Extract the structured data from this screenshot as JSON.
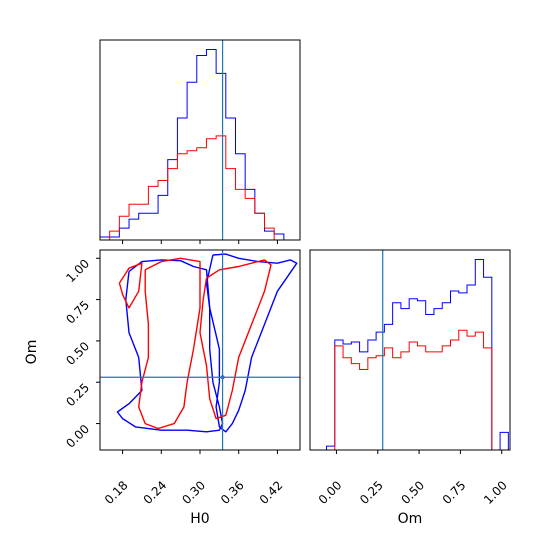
{
  "chart_data": [
    {
      "panel": "H0 marginal",
      "type": "histogram",
      "truth": {
        "H0": 0.335
      },
      "xlim": [
        0.145,
        0.455
      ],
      "bin_edges": [
        0.145,
        0.16,
        0.175,
        0.19,
        0.205,
        0.22,
        0.235,
        0.25,
        0.265,
        0.28,
        0.295,
        0.31,
        0.325,
        0.34,
        0.355,
        0.37,
        0.385,
        0.4,
        0.415,
        0.43,
        0.445
      ],
      "series": [
        {
          "color": "#0000ff",
          "values": [
            1,
            1,
            4,
            7,
            9,
            9,
            15,
            27,
            41,
            53,
            62,
            64,
            56,
            41,
            29,
            17,
            9,
            3,
            2,
            0
          ]
        },
        {
          "color": "#ff0000",
          "values": [
            0,
            3,
            8,
            12,
            12,
            18,
            20,
            24,
            29,
            30,
            31,
            34,
            35,
            24,
            17,
            14,
            9,
            4,
            0,
            0
          ]
        }
      ]
    },
    {
      "panel": "H0 vs Om joint",
      "type": "contour",
      "xlabel": "H0",
      "ylabel": "Om",
      "xlim": [
        0.145,
        0.455
      ],
      "ylim": [
        -0.16,
        1.05
      ],
      "x_ticks": [
        "0.18",
        "0.24",
        "0.30",
        "0.36",
        "0.42"
      ],
      "x_tick_values": [
        0.18,
        0.24,
        0.3,
        0.36,
        0.42
      ],
      "y_ticks": [
        "0.00",
        "0.25",
        "0.50",
        "0.75",
        "1.00"
      ],
      "y_tick_values": [
        0.0,
        0.25,
        0.5,
        0.75,
        1.0
      ],
      "truth": {
        "H0": 0.335,
        "Om": 0.28
      },
      "series": [
        {
          "color": "#0000ff",
          "contours": [
            [
              [
                0.19,
                0.92
              ],
              [
                0.21,
                0.98
              ],
              [
                0.24,
                0.99
              ],
              [
                0.27,
                0.985
              ],
              [
                0.29,
                0.95
              ],
              [
                0.31,
                0.93
              ],
              [
                0.315,
                0.7
              ],
              [
                0.315,
                0.45
              ],
              [
                0.32,
                0.25
              ],
              [
                0.33,
                0.1
              ],
              [
                0.335,
                0.0
              ],
              [
                0.33,
                -0.04
              ],
              [
                0.31,
                -0.05
              ],
              [
                0.28,
                -0.04
              ],
              [
                0.24,
                -0.04
              ],
              [
                0.2,
                -0.02
              ],
              [
                0.18,
                0.03
              ],
              [
                0.172,
                0.07
              ],
              [
                0.19,
                0.12
              ],
              [
                0.21,
                0.2
              ],
              [
                0.205,
                0.4
              ],
              [
                0.19,
                0.55
              ],
              [
                0.185,
                0.75
              ],
              [
                0.19,
                0.92
              ]
            ],
            [
              [
                0.32,
                1.02
              ],
              [
                0.34,
                1.025
              ],
              [
                0.36,
                1.0
              ],
              [
                0.39,
                0.98
              ],
              [
                0.42,
                0.97
              ],
              [
                0.44,
                0.99
              ],
              [
                0.45,
                0.97
              ],
              [
                0.42,
                0.8
              ],
              [
                0.4,
                0.6
              ],
              [
                0.38,
                0.4
              ],
              [
                0.37,
                0.2
              ],
              [
                0.36,
                0.08
              ],
              [
                0.35,
                0.0
              ],
              [
                0.34,
                -0.05
              ],
              [
                0.33,
                -0.02
              ],
              [
                0.325,
                0.1
              ],
              [
                0.33,
                0.25
              ],
              [
                0.33,
                0.45
              ],
              [
                0.315,
                0.7
              ],
              [
                0.31,
                0.85
              ],
              [
                0.32,
                1.02
              ]
            ]
          ]
        },
        {
          "color": "#ff0000",
          "contours": [
            [
              [
                0.215,
                0.93
              ],
              [
                0.24,
                0.98
              ],
              [
                0.27,
                1.0
              ],
              [
                0.3,
                0.98
              ],
              [
                0.3,
                0.7
              ],
              [
                0.29,
                0.45
              ],
              [
                0.28,
                0.25
              ],
              [
                0.275,
                0.1
              ],
              [
                0.26,
                0.0
              ],
              [
                0.235,
                -0.03
              ],
              [
                0.215,
                0.0
              ],
              [
                0.205,
                0.1
              ],
              [
                0.21,
                0.25
              ],
              [
                0.22,
                0.4
              ],
              [
                0.22,
                0.6
              ],
              [
                0.215,
                0.8
              ],
              [
                0.215,
                0.93
              ]
            ],
            [
              [
                0.31,
                0.88
              ],
              [
                0.33,
                0.93
              ],
              [
                0.36,
                0.95
              ],
              [
                0.38,
                0.97
              ],
              [
                0.4,
                0.99
              ],
              [
                0.41,
                0.96
              ],
              [
                0.4,
                0.8
              ],
              [
                0.38,
                0.6
              ],
              [
                0.36,
                0.4
              ],
              [
                0.35,
                0.2
              ],
              [
                0.34,
                0.05
              ],
              [
                0.325,
                0.03
              ],
              [
                0.315,
                0.15
              ],
              [
                0.31,
                0.35
              ],
              [
                0.3,
                0.55
              ],
              [
                0.305,
                0.75
              ],
              [
                0.31,
                0.88
              ]
            ],
            [
              [
                0.175,
                0.85
              ],
              [
                0.19,
                0.94
              ],
              [
                0.21,
                0.97
              ],
              [
                0.205,
                0.8
              ],
              [
                0.19,
                0.7
              ],
              [
                0.18,
                0.78
              ],
              [
                0.175,
                0.85
              ]
            ]
          ]
        }
      ]
    },
    {
      "panel": "Om marginal",
      "type": "histogram",
      "xlabel": "Om",
      "xlim": [
        -0.16,
        1.05
      ],
      "x_ticks": [
        "0.00",
        "0.25",
        "0.50",
        "0.75",
        "1.00"
      ],
      "x_tick_values": [
        0.0,
        0.25,
        0.5,
        0.75,
        1.0
      ],
      "truth": {
        "Om": 0.28
      },
      "bin_edges": [
        -0.16,
        -0.11,
        -0.06,
        -0.01,
        0.04,
        0.09,
        0.14,
        0.19,
        0.24,
        0.29,
        0.34,
        0.39,
        0.44,
        0.49,
        0.54,
        0.59,
        0.64,
        0.69,
        0.74,
        0.79,
        0.84,
        0.89,
        0.94,
        0.99,
        1.04
      ],
      "series": [
        {
          "color": "#0000ff",
          "values": [
            0,
            0,
            2,
            56,
            54,
            55,
            50,
            56,
            60,
            64,
            75,
            72,
            77,
            76,
            69,
            72,
            75,
            81,
            80,
            84,
            97,
            88,
            0,
            9
          ]
        },
        {
          "color": "#ff0000",
          "values": [
            0,
            0,
            0,
            53,
            47,
            44,
            41,
            47,
            48,
            52,
            47,
            50,
            55,
            53,
            50,
            50,
            53,
            56,
            61,
            58,
            60,
            52,
            0,
            0
          ]
        }
      ]
    }
  ]
}
